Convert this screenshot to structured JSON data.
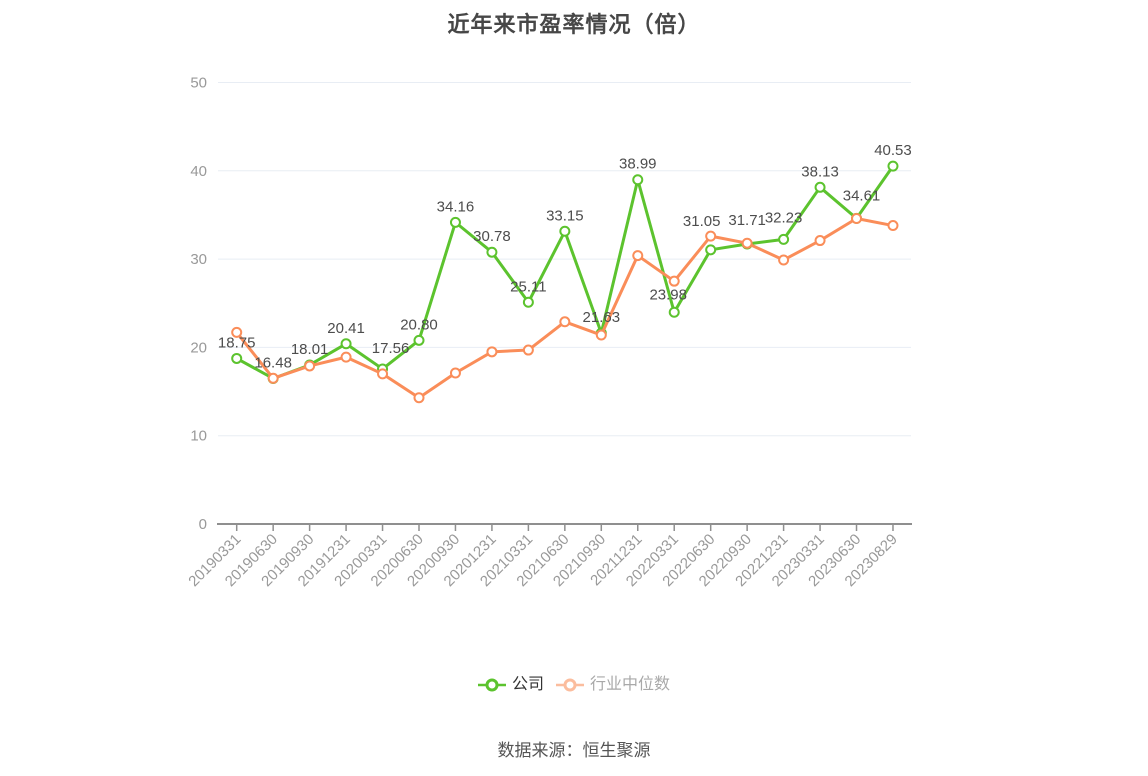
{
  "title": "近年来市盈率情况（倍）",
  "footer": "数据来源：恒生聚源",
  "colors": {
    "company_line": "#5cc32e",
    "industry_line": "#fa8d59",
    "grid_line": "#e8edf4",
    "axis_line": "#8f8f8f",
    "axis_tick_label": "#999999",
    "data_label": "#4d4d4d",
    "title_text": "#474747",
    "footer_text": "#555555"
  },
  "legend": {
    "items": [
      {
        "label": "公司",
        "marker_color": "#5cc32e",
        "text_color": "#333333"
      },
      {
        "label": "行业中位数",
        "marker_color": "#fbbd9e",
        "text_color": "#a9a9a9"
      }
    ]
  },
  "chart_data": {
    "type": "line",
    "title": "近年来市盈率情况（倍）",
    "categories": [
      "20190331",
      "20190630",
      "20190930",
      "20191231",
      "20200331",
      "20200630",
      "20200930",
      "20201231",
      "20210331",
      "20210630",
      "20210930",
      "20211231",
      "20220331",
      "20220630",
      "20220930",
      "20221231",
      "20230331",
      "20230630",
      "20230829"
    ],
    "series": [
      {
        "name": "公司",
        "color": "#5cc32e",
        "show_labels": true,
        "values": [
          18.75,
          16.48,
          18.01,
          20.41,
          17.56,
          20.8,
          34.16,
          30.78,
          25.11,
          33.15,
          21.63,
          38.99,
          23.98,
          31.05,
          31.71,
          32.23,
          38.13,
          34.61,
          40.53
        ]
      },
      {
        "name": "行业中位数",
        "color": "#fa8d59",
        "show_labels": false,
        "values": [
          21.7,
          16.5,
          17.9,
          18.9,
          17.0,
          14.3,
          17.1,
          19.5,
          19.7,
          22.9,
          21.4,
          30.4,
          27.5,
          32.6,
          31.8,
          29.9,
          32.1,
          34.6,
          33.8
        ]
      }
    ],
    "ylim": [
      0,
      50
    ],
    "yticks": [
      0,
      10,
      20,
      30,
      40,
      50
    ],
    "grid": true,
    "xlabel": "",
    "ylabel": "",
    "x_label_rotation": 45,
    "legend_position": "bottom"
  }
}
